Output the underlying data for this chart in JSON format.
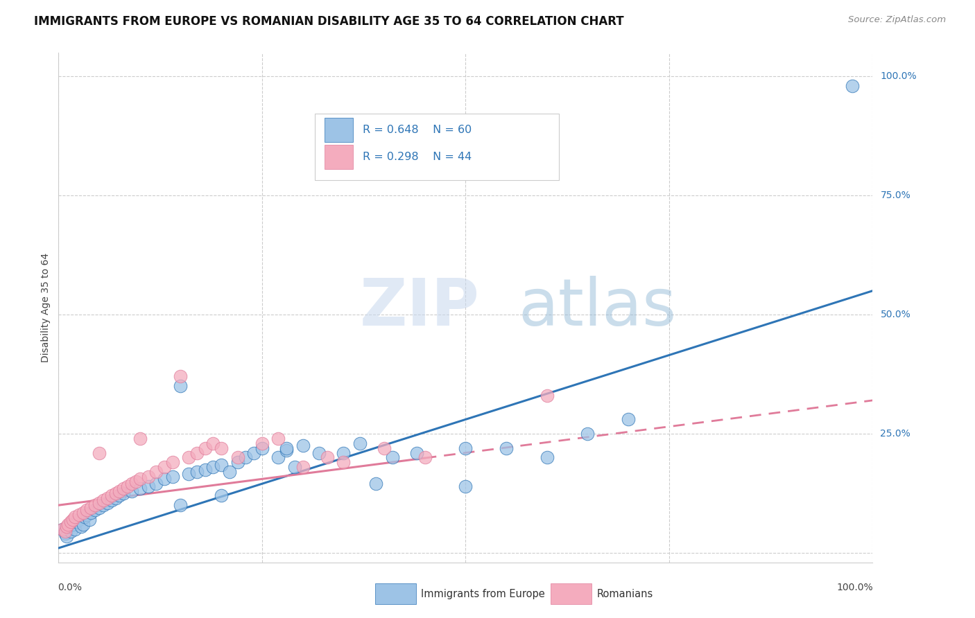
{
  "title": "IMMIGRANTS FROM EUROPE VS ROMANIAN DISABILITY AGE 35 TO 64 CORRELATION CHART",
  "source": "Source: ZipAtlas.com",
  "ylabel": "Disability Age 35 to 64",
  "ytick_labels": [
    "0.0%",
    "25.0%",
    "50.0%",
    "75.0%",
    "100.0%"
  ],
  "ytick_values": [
    0,
    25,
    50,
    75,
    100
  ],
  "xlim": [
    0,
    100
  ],
  "ylim": [
    -2,
    105
  ],
  "blue_R": 0.648,
  "blue_N": 60,
  "pink_R": 0.298,
  "pink_N": 44,
  "blue_color": "#9DC3E6",
  "pink_color": "#F4ACBE",
  "blue_line_color": "#2E75B6",
  "pink_line_color": "#E07B9A",
  "legend_label_blue": "Immigrants from Europe",
  "legend_label_pink": "Romanians",
  "blue_line_x0": 0,
  "blue_line_y0": 1,
  "blue_line_x1": 100,
  "blue_line_y1": 55,
  "pink_line_x0": 0,
  "pink_line_y0": 10,
  "pink_line_x1": 100,
  "pink_line_y1": 32,
  "pink_dashed_x0": 45,
  "pink_dashed_x1": 100,
  "blue_scatter_x": [
    0.5,
    0.8,
    1.0,
    1.2,
    1.5,
    1.8,
    2.0,
    2.2,
    2.5,
    2.8,
    3.0,
    3.2,
    3.5,
    3.8,
    4.0,
    4.5,
    5.0,
    5.5,
    6.0,
    6.5,
    7.0,
    7.5,
    8.0,
    9.0,
    10.0,
    11.0,
    12.0,
    13.0,
    14.0,
    15.0,
    16.0,
    17.0,
    18.0,
    19.0,
    20.0,
    21.0,
    22.0,
    23.0,
    24.0,
    25.0,
    27.0,
    28.0,
    29.0,
    30.0,
    32.0,
    35.0,
    37.0,
    39.0,
    41.0,
    44.0,
    50.0,
    55.0,
    60.0,
    65.0,
    70.0,
    50.0,
    28.0,
    20.0,
    97.5,
    15.0
  ],
  "blue_scatter_y": [
    5.0,
    4.0,
    3.5,
    5.5,
    4.5,
    6.0,
    5.0,
    6.5,
    7.0,
    5.5,
    6.0,
    7.5,
    8.0,
    7.0,
    8.5,
    9.0,
    9.5,
    10.0,
    10.5,
    11.0,
    11.5,
    12.0,
    12.5,
    13.0,
    13.5,
    14.0,
    14.5,
    15.5,
    16.0,
    35.0,
    16.5,
    17.0,
    17.5,
    18.0,
    18.5,
    17.0,
    19.0,
    20.0,
    21.0,
    22.0,
    20.0,
    21.5,
    18.0,
    22.5,
    21.0,
    21.0,
    23.0,
    14.5,
    20.0,
    21.0,
    14.0,
    22.0,
    20.0,
    25.0,
    28.0,
    22.0,
    22.0,
    12.0,
    98.0,
    10.0
  ],
  "pink_scatter_x": [
    0.5,
    0.8,
    1.0,
    1.2,
    1.5,
    1.8,
    2.0,
    2.5,
    3.0,
    3.5,
    4.0,
    4.5,
    5.0,
    5.5,
    6.0,
    6.5,
    7.0,
    7.5,
    8.0,
    8.5,
    9.0,
    9.5,
    10.0,
    11.0,
    12.0,
    13.0,
    14.0,
    15.0,
    16.0,
    17.0,
    18.0,
    19.0,
    20.0,
    22.0,
    25.0,
    27.0,
    30.0,
    33.0,
    35.0,
    40.0,
    45.0,
    60.0,
    10.0,
    5.0
  ],
  "pink_scatter_y": [
    5.0,
    4.5,
    5.5,
    6.0,
    6.5,
    7.0,
    7.5,
    8.0,
    8.5,
    9.0,
    9.5,
    10.0,
    10.5,
    11.0,
    11.5,
    12.0,
    12.5,
    13.0,
    13.5,
    14.0,
    14.5,
    15.0,
    15.5,
    16.0,
    17.0,
    18.0,
    19.0,
    37.0,
    20.0,
    21.0,
    22.0,
    23.0,
    22.0,
    20.0,
    23.0,
    24.0,
    18.0,
    20.0,
    19.0,
    22.0,
    20.0,
    33.0,
    24.0,
    21.0
  ]
}
